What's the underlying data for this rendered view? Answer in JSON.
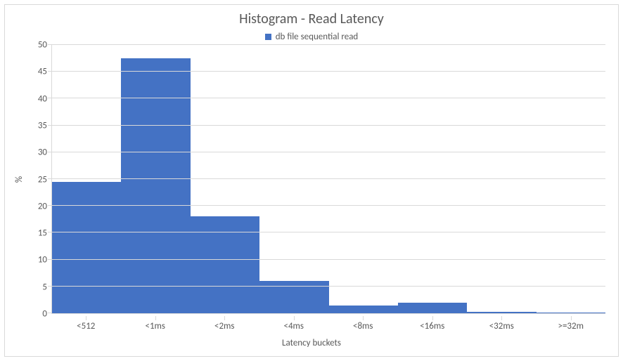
{
  "chart": {
    "type": "bar",
    "title": "Histogram - Read Latency",
    "title_fontsize": 20,
    "title_color": "#595959",
    "legend": {
      "label": "db file sequential read",
      "swatch_color": "#4472c4",
      "fontsize": 13,
      "text_color": "#595959"
    },
    "categories": [
      "<512",
      "<1ms",
      "<2ms",
      "<4ms",
      "<8ms",
      "<16ms",
      "<32ms",
      ">=32m"
    ],
    "values": [
      24.5,
      47.5,
      18,
      6,
      1.5,
      2,
      0.3,
      0.1
    ],
    "bar_color": "#4472c4",
    "bar_width_pct": 100,
    "ylabel": "%",
    "xlabel": "Latency buckets",
    "label_fontsize": 13,
    "tick_fontsize": 13,
    "ylim_min": 0,
    "ylim_max": 50,
    "ytick_step": 5,
    "yticks": [
      0,
      5,
      10,
      15,
      20,
      25,
      30,
      35,
      40,
      45,
      50
    ],
    "background_color": "#ffffff",
    "frame_border_color": "#d9d9d9",
    "axis_color": "#d9d9d9",
    "grid_color": "#d9d9d9",
    "tick_color": "#595959"
  }
}
